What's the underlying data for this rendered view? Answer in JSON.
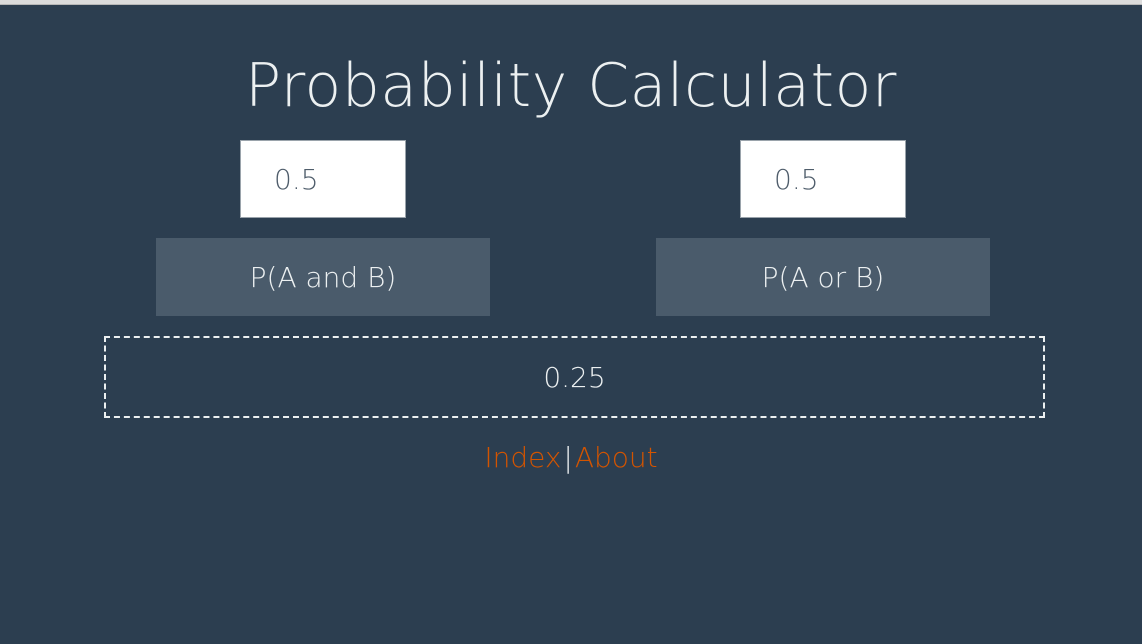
{
  "page": {
    "title": "Probability Calculator"
  },
  "inputs": {
    "a_value": "0.5",
    "b_value": "0.5"
  },
  "buttons": {
    "and_label": "P(A and B)",
    "or_label": "P(A or B)"
  },
  "result": {
    "value": "0.25"
  },
  "footer": {
    "index_label": "Index",
    "separator": "|",
    "about_label": "About"
  },
  "colors": {
    "background": "#2c3e50",
    "button": "#4a5b6b",
    "text": "#ecf0f1",
    "link": "#d35400"
  }
}
